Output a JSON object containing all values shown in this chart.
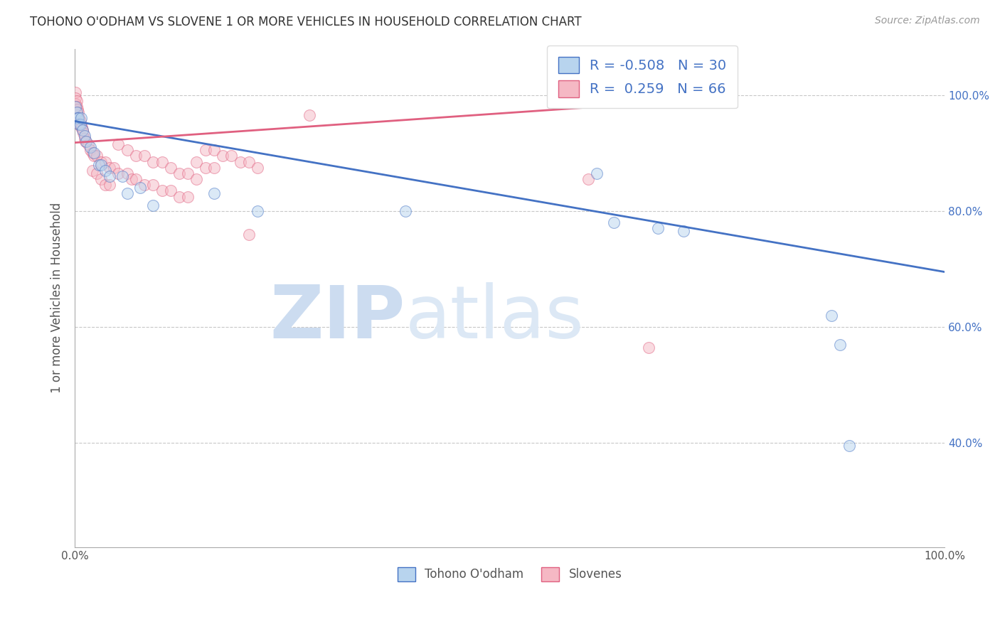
{
  "title": "TOHONO O'ODHAM VS SLOVENE 1 OR MORE VEHICLES IN HOUSEHOLD CORRELATION CHART",
  "source": "Source: ZipAtlas.com",
  "ylabel": "1 or more Vehicles in Household",
  "xlim": [
    0,
    1.0
  ],
  "ylim": [
    0.22,
    1.08
  ],
  "ytick_positions": [
    0.4,
    0.6,
    0.8,
    1.0
  ],
  "yticklabels_right": [
    "40.0%",
    "60.0%",
    "80.0%",
    "100.0%"
  ],
  "xtick_positions": [
    0,
    0.25,
    0.5,
    0.75,
    1.0
  ],
  "xticklabels": [
    "0.0%",
    "",
    "",
    "",
    "100.0%"
  ],
  "legend_labels_bottom": [
    "Tohono O'odham",
    "Slovenes"
  ],
  "legend_R_entries": [
    "R = -0.508   N = 30",
    "R =  0.259   N = 66"
  ],
  "blue_color": "#b8d4ee",
  "blue_edge": "#4472c4",
  "pink_color": "#f5b8c4",
  "pink_edge": "#e06080",
  "blue_line_color": "#4472c4",
  "pink_line_color": "#e06080",
  "legend_text_color": "#4472c4",
  "axis_color": "#555555",
  "title_color": "#333333",
  "grid_color": "#c8c8c8",
  "watermark_text": "ZIPatlas",
  "watermark_color": "#dce8f5",
  "dot_size": 130,
  "dot_alpha": 0.5,
  "blue_scatter_x": [
    0.001,
    0.002,
    0.003,
    0.004,
    0.005,
    0.006,
    0.007,
    0.009,
    0.011,
    0.013,
    0.018,
    0.022,
    0.028,
    0.03,
    0.035,
    0.04,
    0.055,
    0.06,
    0.075,
    0.09,
    0.16,
    0.21,
    0.38,
    0.6,
    0.62,
    0.67,
    0.7,
    0.87,
    0.88,
    0.89
  ],
  "blue_scatter_y": [
    0.98,
    0.97,
    0.96,
    0.96,
    0.95,
    0.95,
    0.96,
    0.94,
    0.93,
    0.92,
    0.91,
    0.9,
    0.88,
    0.88,
    0.87,
    0.86,
    0.86,
    0.83,
    0.84,
    0.81,
    0.83,
    0.8,
    0.8,
    0.865,
    0.78,
    0.77,
    0.765,
    0.62,
    0.57,
    0.395
  ],
  "pink_scatter_x": [
    0.001,
    0.001,
    0.001,
    0.002,
    0.002,
    0.003,
    0.003,
    0.004,
    0.004,
    0.005,
    0.005,
    0.006,
    0.007,
    0.008,
    0.009,
    0.01,
    0.011,
    0.012,
    0.015,
    0.018,
    0.02,
    0.022,
    0.025,
    0.03,
    0.035,
    0.04,
    0.045,
    0.05,
    0.06,
    0.065,
    0.07,
    0.08,
    0.09,
    0.1,
    0.11,
    0.12,
    0.13,
    0.14,
    0.15,
    0.16,
    0.02,
    0.025,
    0.03,
    0.035,
    0.04,
    0.05,
    0.06,
    0.07,
    0.08,
    0.09,
    0.1,
    0.11,
    0.12,
    0.13,
    0.14,
    0.15,
    0.16,
    0.17,
    0.18,
    0.19,
    0.2,
    0.21,
    0.27,
    0.59,
    0.66,
    0.2
  ],
  "pink_scatter_y": [
    1.005,
    0.995,
    0.985,
    0.99,
    0.98,
    0.975,
    0.965,
    0.97,
    0.96,
    0.96,
    0.95,
    0.955,
    0.945,
    0.945,
    0.94,
    0.935,
    0.925,
    0.92,
    0.915,
    0.905,
    0.9,
    0.895,
    0.895,
    0.885,
    0.885,
    0.875,
    0.875,
    0.865,
    0.865,
    0.855,
    0.855,
    0.845,
    0.845,
    0.835,
    0.835,
    0.825,
    0.825,
    0.885,
    0.875,
    0.875,
    0.87,
    0.865,
    0.855,
    0.845,
    0.845,
    0.915,
    0.905,
    0.895,
    0.895,
    0.885,
    0.885,
    0.875,
    0.865,
    0.865,
    0.855,
    0.905,
    0.905,
    0.895,
    0.895,
    0.885,
    0.885,
    0.875,
    0.965,
    0.855,
    0.565,
    0.76
  ],
  "blue_trend_x": [
    0.0,
    1.0
  ],
  "blue_trend_y": [
    0.955,
    0.695
  ],
  "pink_trend_x": [
    0.0,
    0.65
  ],
  "pink_trend_y": [
    0.918,
    0.985
  ],
  "background_color": "#ffffff"
}
